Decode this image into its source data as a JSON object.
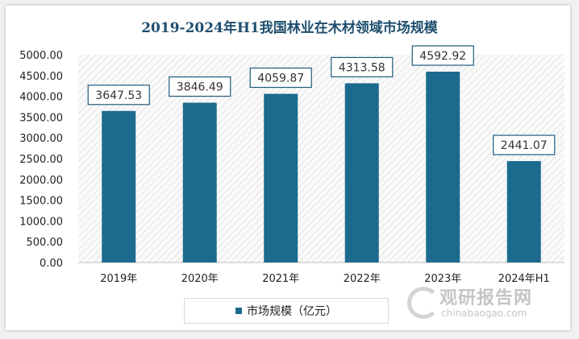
{
  "chart_data": {
    "type": "bar",
    "title": "2019-2024年H1我国林业在木材领域市场规模",
    "categories": [
      "2019年",
      "2020年",
      "2021年",
      "2022年",
      "2023年",
      "2024年H1"
    ],
    "series": [
      {
        "name": "市场规模（亿元）",
        "values": [
          3647.53,
          3846.49,
          4059.87,
          4313.58,
          4592.92,
          2441.07
        ]
      }
    ],
    "data_labels": [
      "3647.53",
      "3846.49",
      "4059.87",
      "4313.58",
      "4592.92",
      "2441.07"
    ],
    "yticks": [
      "0.00",
      "500.00",
      "1000.00",
      "1500.00",
      "2000.00",
      "2500.00",
      "3000.00",
      "3500.00",
      "4000.00",
      "4500.00",
      "5000.00"
    ],
    "ylim": [
      0,
      5000
    ],
    "xlabel": "",
    "ylabel": "",
    "grid": false,
    "legend": "bottom",
    "bar_color": "#1c6b8f"
  },
  "watermark": {
    "name": "观研报告网",
    "url": "chinabaogao.com"
  }
}
